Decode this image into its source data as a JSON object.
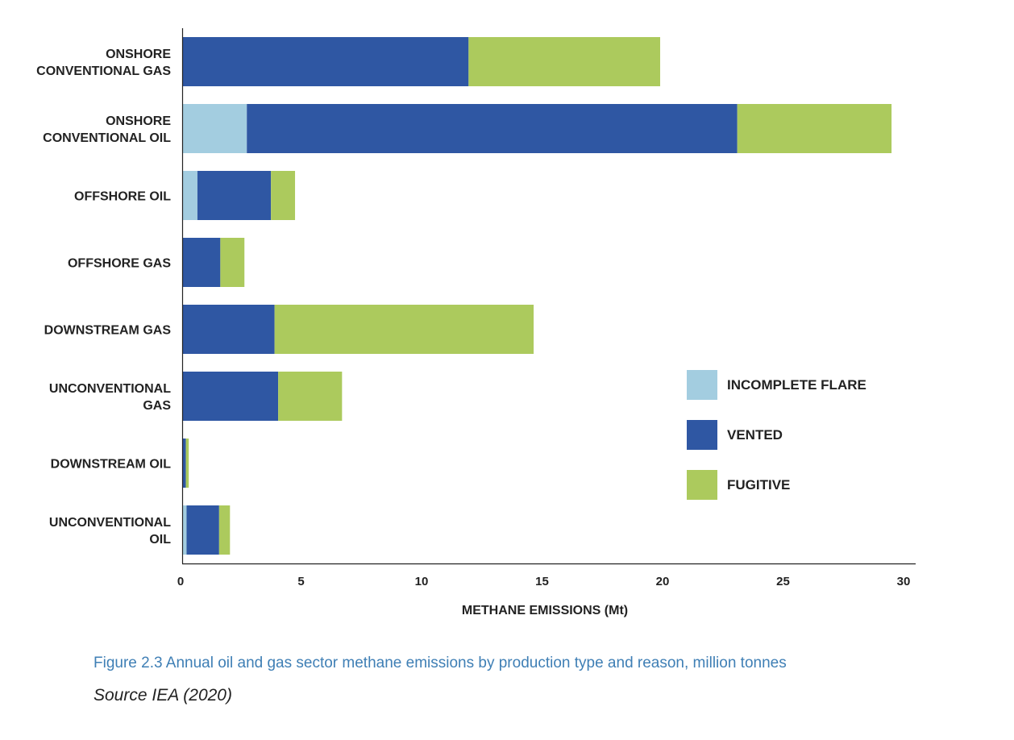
{
  "chart_data": {
    "type": "bar",
    "orientation": "horizontal",
    "stacked": true,
    "categories": [
      [
        "ONSHORE",
        "CONVENTIONAL GAS"
      ],
      [
        "ONSHORE",
        "CONVENTIONAL OIL"
      ],
      [
        "OFFSHORE OIL"
      ],
      [
        "OFFSHORE GAS"
      ],
      [
        "DOWNSTREAM GAS"
      ],
      [
        "UNCONVENTIONAL",
        "GAS"
      ],
      [
        "DOWNSTREAM OIL"
      ],
      [
        "UNCONVENTIONAL",
        "OIL"
      ]
    ],
    "series": [
      {
        "name": "INCOMPLETE FLARE",
        "color": "#a3cde0",
        "values": [
          0,
          2.65,
          0.6,
          0,
          0,
          0,
          0,
          0.15
        ]
      },
      {
        "name": "VENTED",
        "color": "#2f57a3",
        "values": [
          11.85,
          20.35,
          3.05,
          1.55,
          3.8,
          3.95,
          0.12,
          1.35
        ]
      },
      {
        "name": "FUGITIVE",
        "color": "#acca5d",
        "values": [
          7.95,
          6.4,
          1.0,
          1.0,
          10.75,
          2.65,
          0.12,
          0.45
        ]
      }
    ],
    "xlabel": "METHANE EMISSIONS (Mt)",
    "xlim": [
      0,
      30
    ],
    "xticks": [
      0,
      5,
      10,
      15,
      20,
      25,
      30
    ],
    "grid": false,
    "legend_position": "right"
  },
  "caption": "Figure 2.3 Annual oil and gas sector methane emissions by production type and reason, million tonnes",
  "source": "Source IEA (2020)"
}
